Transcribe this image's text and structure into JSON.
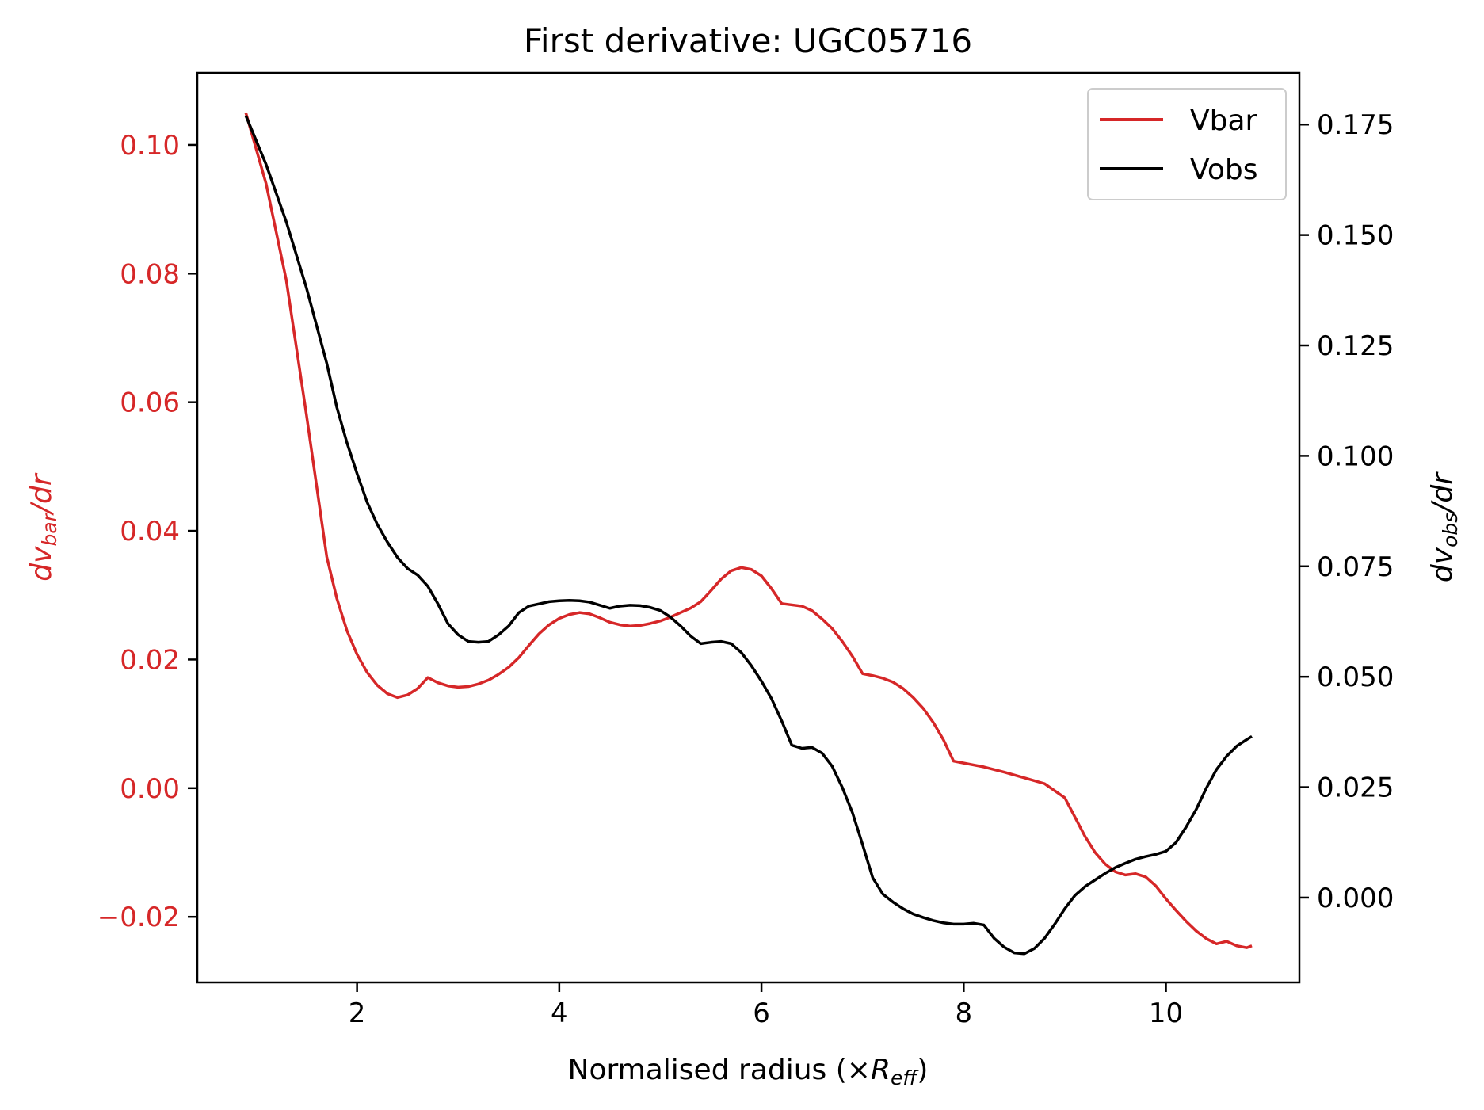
{
  "chart_data": {
    "type": "line",
    "title": "First derivative: UGC05716",
    "xlabel": {
      "prefix": "Normalised radius (×",
      "var": "R",
      "sub": "eff",
      "suffix": ")"
    },
    "ylabel_left": {
      "var": "dv",
      "sub": "bar",
      "suffix": "/dr"
    },
    "ylabel_right": {
      "var": "dv",
      "sub": "obs",
      "suffix": "/dr"
    },
    "xlim": [
      0.42,
      11.32
    ],
    "ylim_left": [
      -0.0302,
      0.1112
    ],
    "ylim_right": [
      -0.0192,
      0.1867
    ],
    "x_ticks": [
      2,
      4,
      6,
      8,
      10
    ],
    "x_tick_labels": [
      "2",
      "4",
      "6",
      "8",
      "10"
    ],
    "y_left_ticks": [
      -0.02,
      0.0,
      0.02,
      0.04,
      0.06,
      0.08,
      0.1
    ],
    "y_left_tick_labels": [
      "−0.02",
      "0.00",
      "0.02",
      "0.04",
      "0.06",
      "0.08",
      "0.10"
    ],
    "y_right_ticks": [
      0.0,
      0.025,
      0.05,
      0.075,
      0.1,
      0.125,
      0.15,
      0.175
    ],
    "y_right_tick_labels": [
      "0.000",
      "0.025",
      "0.050",
      "0.075",
      "0.100",
      "0.125",
      "0.150",
      "0.175"
    ],
    "grid": false,
    "legend_position": "top-right",
    "colors": {
      "vbar": "#d62728",
      "vobs": "#000000"
    },
    "series": [
      {
        "name": "Vbar",
        "axis": "left",
        "color": "#d62728",
        "x": [
          0.9,
          1.1,
          1.3,
          1.5,
          1.7,
          1.8,
          1.9,
          2.0,
          2.1,
          2.2,
          2.3,
          2.4,
          2.5,
          2.6,
          2.7,
          2.8,
          2.9,
          3.0,
          3.1,
          3.2,
          3.3,
          3.4,
          3.5,
          3.6,
          3.7,
          3.8,
          3.9,
          4.0,
          4.1,
          4.2,
          4.3,
          4.4,
          4.5,
          4.6,
          4.7,
          4.8,
          4.9,
          5.0,
          5.1,
          5.2,
          5.3,
          5.4,
          5.5,
          5.6,
          5.7,
          5.8,
          5.9,
          6.0,
          6.1,
          6.2,
          6.3,
          6.4,
          6.5,
          6.6,
          6.7,
          6.8,
          6.9,
          7.0,
          7.1,
          7.2,
          7.3,
          7.4,
          7.5,
          7.6,
          7.7,
          7.8,
          7.9,
          8.0,
          8.1,
          8.2,
          8.4,
          8.6,
          8.8,
          9.0,
          9.1,
          9.2,
          9.3,
          9.4,
          9.5,
          9.6,
          9.7,
          9.8,
          9.9,
          10.0,
          10.1,
          10.2,
          10.3,
          10.4,
          10.5,
          10.6,
          10.7,
          10.8,
          10.85
        ],
        "y": [
          0.105,
          0.094,
          0.079,
          0.058,
          0.036,
          0.0295,
          0.0245,
          0.0208,
          0.018,
          0.016,
          0.0147,
          0.0141,
          0.0145,
          0.0155,
          0.0172,
          0.0164,
          0.0159,
          0.0157,
          0.0158,
          0.0162,
          0.0168,
          0.0177,
          0.0188,
          0.0203,
          0.0222,
          0.024,
          0.0254,
          0.0264,
          0.027,
          0.0273,
          0.0271,
          0.0265,
          0.0258,
          0.0254,
          0.0252,
          0.0253,
          0.0256,
          0.026,
          0.0266,
          0.0273,
          0.028,
          0.029,
          0.0307,
          0.0325,
          0.0338,
          0.0343,
          0.034,
          0.033,
          0.031,
          0.0287,
          0.0285,
          0.0283,
          0.0276,
          0.0263,
          0.0248,
          0.0228,
          0.0205,
          0.0178,
          0.0175,
          0.0171,
          0.0165,
          0.0155,
          0.0141,
          0.0124,
          0.0102,
          0.0075,
          0.0042,
          0.0039,
          0.0036,
          0.0033,
          0.0025,
          0.0016,
          0.0007,
          -0.0015,
          -0.0045,
          -0.0075,
          -0.01,
          -0.0118,
          -0.013,
          -0.0135,
          -0.0133,
          -0.0138,
          -0.0152,
          -0.0172,
          -0.019,
          -0.0207,
          -0.0222,
          -0.0234,
          -0.0242,
          -0.0238,
          -0.0245,
          -0.0248,
          -0.0245
        ]
      },
      {
        "name": "Vobs",
        "axis": "right",
        "color": "#000000",
        "x": [
          0.9,
          1.1,
          1.3,
          1.5,
          1.7,
          1.8,
          1.9,
          2.0,
          2.1,
          2.2,
          2.3,
          2.4,
          2.5,
          2.6,
          2.7,
          2.8,
          2.9,
          3.0,
          3.1,
          3.2,
          3.3,
          3.4,
          3.5,
          3.6,
          3.7,
          3.8,
          3.9,
          4.0,
          4.1,
          4.2,
          4.3,
          4.4,
          4.5,
          4.6,
          4.7,
          4.8,
          4.9,
          5.0,
          5.1,
          5.2,
          5.3,
          5.4,
          5.5,
          5.6,
          5.7,
          5.8,
          5.9,
          6.0,
          6.1,
          6.2,
          6.3,
          6.4,
          6.5,
          6.6,
          6.7,
          6.8,
          6.9,
          7.0,
          7.1,
          7.2,
          7.3,
          7.4,
          7.5,
          7.6,
          7.7,
          7.8,
          7.9,
          8.0,
          8.1,
          8.2,
          8.3,
          8.4,
          8.5,
          8.6,
          8.7,
          8.8,
          8.9,
          9.0,
          9.1,
          9.2,
          9.3,
          9.4,
          9.5,
          9.6,
          9.7,
          9.8,
          9.9,
          10.0,
          10.1,
          10.2,
          10.3,
          10.4,
          10.5,
          10.6,
          10.7,
          10.8,
          10.85
        ],
        "y": [
          0.177,
          0.166,
          0.153,
          0.138,
          0.121,
          0.111,
          0.103,
          0.096,
          0.0895,
          0.0845,
          0.0805,
          0.077,
          0.0745,
          0.073,
          0.0705,
          0.0665,
          0.062,
          0.0595,
          0.058,
          0.0578,
          0.058,
          0.0595,
          0.0615,
          0.0645,
          0.066,
          0.0665,
          0.067,
          0.0672,
          0.0673,
          0.0672,
          0.0669,
          0.0662,
          0.0655,
          0.066,
          0.0662,
          0.0661,
          0.0657,
          0.065,
          0.0635,
          0.0615,
          0.0592,
          0.0575,
          0.0578,
          0.058,
          0.0575,
          0.0555,
          0.0525,
          0.049,
          0.045,
          0.04,
          0.0345,
          0.0338,
          0.034,
          0.0327,
          0.0297,
          0.0249,
          0.0192,
          0.012,
          0.0045,
          0.0008,
          -0.001,
          -0.0025,
          -0.0037,
          -0.0045,
          -0.0052,
          -0.0057,
          -0.006,
          -0.006,
          -0.0058,
          -0.0062,
          -0.0092,
          -0.0112,
          -0.0125,
          -0.0127,
          -0.0115,
          -0.0092,
          -0.006,
          -0.0025,
          0.0005,
          0.0025,
          0.004,
          0.0055,
          0.0068,
          0.0078,
          0.0087,
          0.0093,
          0.0098,
          0.0105,
          0.0125,
          0.016,
          0.02,
          0.0248,
          0.029,
          0.032,
          0.0343,
          0.0358,
          0.0365
        ]
      }
    ]
  }
}
